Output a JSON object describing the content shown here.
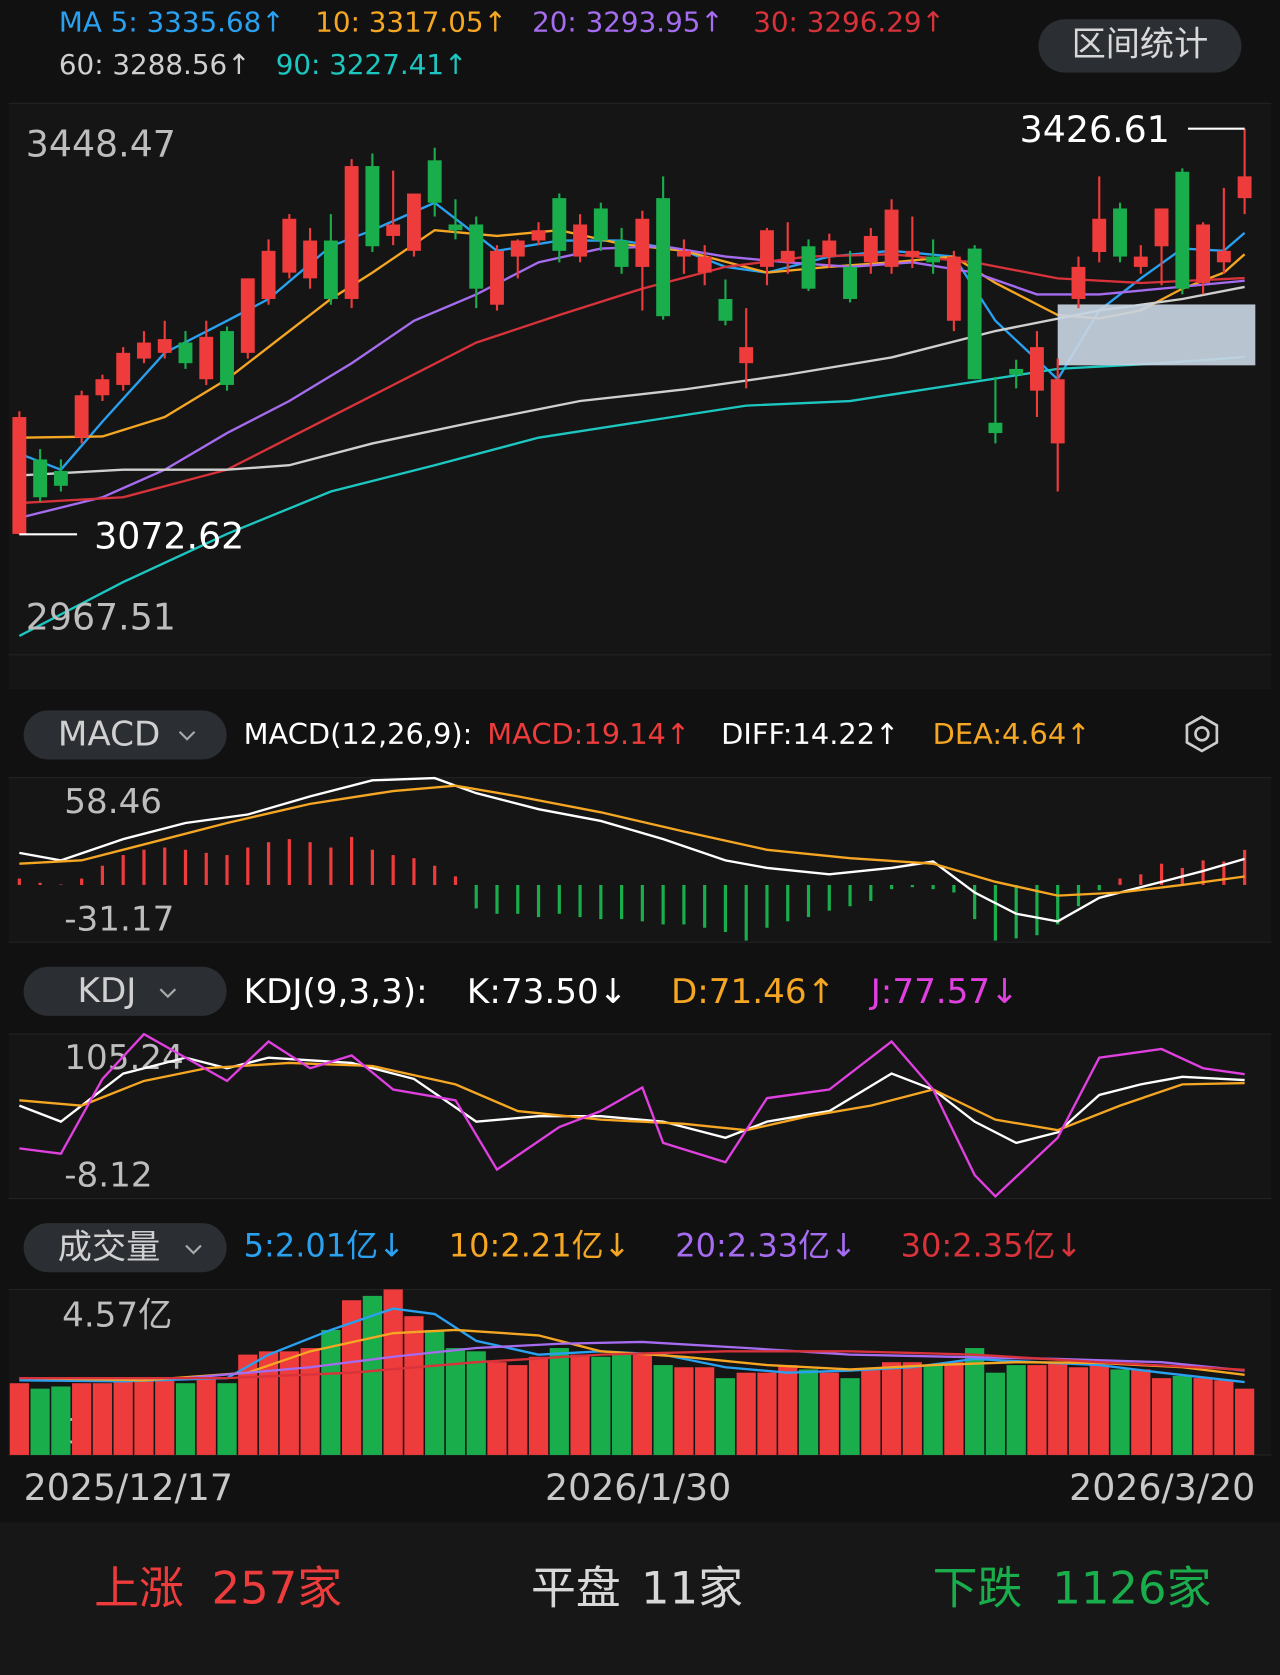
{
  "header": {
    "button": "区间统计"
  },
  "chart_data": [
    {
      "type": "candlestick",
      "up_color": "#ee3b3b",
      "down_color": "#19ad4c",
      "ylim": [
        2967.51,
        3448.47
      ],
      "yticks": [
        3448.47,
        2967.51
      ],
      "grid": true,
      "open": [
        3073,
        3138,
        3128,
        3157,
        3194,
        3203,
        3226,
        3231,
        3240,
        3208,
        3250,
        3231,
        3278,
        3301,
        3296,
        3329,
        3278,
        3394,
        3333,
        3320,
        3399,
        3343,
        3343,
        3273,
        3315,
        3329,
        3366,
        3315,
        3357,
        3329,
        3306,
        3366,
        3315,
        3301,
        3278,
        3222,
        3306,
        3310,
        3324,
        3315,
        3306,
        3310,
        3306,
        3315,
        3315,
        3259,
        3322,
        3170,
        3217,
        3198,
        3152,
        3278,
        3319,
        3357,
        3306,
        3324,
        3389,
        3292,
        3310,
        3366
      ],
      "high": [
        3180,
        3147,
        3138,
        3198,
        3212,
        3236,
        3250,
        3259,
        3250,
        3259,
        3254,
        3296,
        3330,
        3352,
        3340,
        3352,
        3400,
        3405,
        3390,
        3370,
        3410,
        3365,
        3350,
        3325,
        3330,
        3345,
        3370,
        3352,
        3362,
        3340,
        3355,
        3385,
        3330,
        3325,
        3295,
        3270,
        3340,
        3345,
        3330,
        3335,
        3320,
        3340,
        3365,
        3350,
        3330,
        3320,
        3325,
        3210,
        3225,
        3250,
        3226,
        3315,
        3385,
        3362,
        3325,
        3357,
        3392,
        3345,
        3375,
        3426.61
      ],
      "low": [
        3072.62,
        3101,
        3110,
        3152,
        3189,
        3198,
        3222,
        3226,
        3217,
        3203,
        3198,
        3226,
        3273,
        3296,
        3287,
        3273,
        3270,
        3319,
        3325,
        3315,
        3350,
        3330,
        3270,
        3268,
        3296,
        3325,
        3310,
        3310,
        3320,
        3300,
        3268,
        3260,
        3300,
        3290,
        3255,
        3200,
        3290,
        3300,
        3285,
        3305,
        3275,
        3300,
        3300,
        3305,
        3300,
        3250,
        3208,
        3152,
        3200,
        3175,
        3110,
        3270,
        3310,
        3310,
        3300,
        3290,
        3282,
        3282,
        3300,
        3352
      ],
      "close": [
        3175,
        3105,
        3115,
        3194,
        3208,
        3231,
        3240,
        3243,
        3222,
        3245,
        3203,
        3296,
        3320,
        3348,
        3329,
        3278,
        3394,
        3324,
        3343,
        3370,
        3362,
        3338,
        3287,
        3320,
        3329,
        3338,
        3320,
        3343,
        3329,
        3306,
        3348,
        3263,
        3320,
        3315,
        3259,
        3236,
        3338,
        3320,
        3287,
        3329,
        3278,
        3333,
        3356,
        3320,
        3310,
        3315,
        3208,
        3161,
        3212,
        3236,
        3208,
        3306,
        3348,
        3315,
        3315,
        3357,
        3287,
        3343,
        3320,
        3385
      ],
      "series": [
        {
          "name": "MA 5: 3335.68↑",
          "color": "#2aa1f0",
          "x": [
            0,
            2,
            4,
            7,
            10,
            12,
            15,
            17,
            20,
            23,
            26,
            29,
            32,
            34,
            36,
            39,
            42,
            45,
            47,
            50,
            52,
            54,
            56,
            58,
            59
          ],
          "values": [
            3143,
            3129,
            3171,
            3231,
            3259,
            3278,
            3324,
            3338,
            3362,
            3320,
            3329,
            3329,
            3320,
            3306,
            3301,
            3315,
            3320,
            3315,
            3259,
            3208,
            3268,
            3296,
            3322,
            3320,
            3335.68
          ]
        },
        {
          "name": "10: 3317.05↑",
          "color": "#f5a623",
          "x": [
            0,
            4,
            7,
            10,
            12,
            15,
            17,
            20,
            23,
            26,
            29,
            32,
            36,
            39,
            42,
            45,
            47,
            50,
            52,
            54,
            56,
            58,
            59
          ],
          "values": [
            3157,
            3158,
            3175,
            3208,
            3236,
            3278,
            3301,
            3338,
            3333,
            3338,
            3326,
            3320,
            3301,
            3306,
            3310,
            3315,
            3292,
            3264,
            3261,
            3268,
            3287,
            3301,
            3317.05
          ]
        },
        {
          "name": "20: 3293.95↑",
          "color": "#a56cf0",
          "x": [
            0,
            4,
            7,
            10,
            13,
            16,
            19,
            22,
            25,
            28,
            31,
            34,
            37,
            40,
            43,
            46,
            49,
            52,
            55,
            59
          ],
          "values": [
            3087,
            3105,
            3129,
            3161,
            3189,
            3222,
            3259,
            3282,
            3310,
            3322,
            3324,
            3315,
            3310,
            3306,
            3310,
            3301,
            3282,
            3282,
            3287,
            3293.95
          ]
        },
        {
          "name": "30: 3296.29↑",
          "color": "#d8323a",
          "x": [
            0,
            5,
            10,
            14,
            18,
            22,
            26,
            30,
            34,
            38,
            42,
            46,
            50,
            54,
            59
          ],
          "values": [
            3100,
            3105,
            3129,
            3166,
            3203,
            3240,
            3264,
            3287,
            3306,
            3315,
            3317,
            3310,
            3296,
            3292,
            3296.29
          ]
        },
        {
          "name": "60: 3288.56↑",
          "color": "#cfcfcf",
          "x": [
            0,
            5,
            10,
            13,
            17,
            22,
            27,
            32,
            37,
            42,
            47,
            52,
            56,
            59
          ],
          "values": [
            3124,
            3129,
            3129,
            3133,
            3152,
            3171,
            3189,
            3199,
            3212,
            3227,
            3250,
            3268,
            3278,
            3288.56
          ]
        },
        {
          "name": "90: 3227.41↑",
          "color": "#1cc7c1",
          "x": [
            0,
            5,
            10,
            15,
            20,
            25,
            30,
            35,
            40,
            45,
            50,
            55,
            59
          ],
          "values": [
            2984,
            3031,
            3073,
            3110,
            3133,
            3157,
            3171,
            3185,
            3189,
            3203,
            3217,
            3222,
            3227.41
          ]
        }
      ]
    },
    {
      "type": "macd",
      "button": "MACD",
      "title": "MACD(12,26,9):",
      "ylim": [
        -31.17,
        58.46
      ],
      "yticks": [
        58.46,
        -31.17
      ],
      "grid": true,
      "up_color": "#ee3b3b",
      "down_color": "#19ad4c",
      "series": [
        {
          "name": "MACD:19.14↑",
          "color": "#ee3b3b",
          "type": "bar",
          "values": [
            3.5,
            1.2,
            0.3,
            3.5,
            10.5,
            16.3,
            19.2,
            20.4,
            19.2,
            17.5,
            16.3,
            20.4,
            23.3,
            25.0,
            23.3,
            20.4,
            26.2,
            19.2,
            16.3,
            14.6,
            10.5,
            4.7,
            -12.8,
            -15.7,
            -15.7,
            -17.5,
            -15.7,
            -17.5,
            -18.6,
            -18.6,
            -19.8,
            -21.5,
            -21.5,
            -23.3,
            -25.6,
            -30.3,
            -23.3,
            -19.8,
            -17.5,
            -14.0,
            -11.6,
            -8.7,
            -2.3,
            -1.2,
            -2.3,
            -4.1,
            -18.6,
            -30.3,
            -29.1,
            -27.4,
            -21.5,
            -11.6,
            -2.9,
            3.5,
            5.8,
            11.6,
            9.3,
            13.4,
            12.8,
            19.14
          ]
        },
        {
          "name": "DIFF:14.22↑",
          "color": "#ffffff",
          "x": [
            0,
            2,
            5,
            8,
            11,
            14,
            17,
            20,
            22,
            25,
            28,
            31,
            34,
            36,
            39,
            42,
            44,
            46,
            48,
            50,
            52,
            55,
            57,
            59
          ],
          "values": [
            17.5,
            13.4,
            25.0,
            33.8,
            38.4,
            48.3,
            57.0,
            58.2,
            50.0,
            41.3,
            34.9,
            25.0,
            13.4,
            9.3,
            5.8,
            9.3,
            12.8,
            -4.1,
            -15.7,
            -19.8,
            -7.0,
            1.7,
            7.6,
            14.22
          ]
        },
        {
          "name": "DEA:4.64↑",
          "color": "#f5a623",
          "x": [
            0,
            3,
            6,
            10,
            14,
            18,
            21,
            24,
            28,
            32,
            36,
            40,
            44,
            47,
            50,
            53,
            56,
            59
          ],
          "values": [
            11.6,
            13.4,
            22.1,
            33.8,
            44.2,
            51.2,
            54.1,
            48.3,
            39.6,
            29.1,
            19.2,
            14.6,
            11.6,
            1.7,
            -5.8,
            -4.1,
            0,
            4.64
          ]
        }
      ]
    },
    {
      "type": "line",
      "button": "KDJ",
      "title": "KDJ(9,3,3):",
      "ylim": [
        -8.12,
        105.24
      ],
      "yticks": [
        105.24,
        -8.12
      ],
      "grid": true,
      "series": [
        {
          "name": "K:73.50↓",
          "color": "#ffffff",
          "x": [
            0,
            2,
            5,
            8,
            10,
            12,
            16,
            19,
            22,
            25,
            28,
            31,
            34,
            36,
            39,
            42,
            44,
            46,
            48,
            50,
            52,
            54,
            56,
            59
          ],
          "values": [
            55.9,
            44.9,
            78.0,
            89.0,
            81.7,
            89.0,
            85.4,
            74.3,
            44.9,
            48.6,
            48.6,
            44.9,
            33.8,
            44.9,
            52.2,
            78.0,
            67.0,
            44.9,
            30.2,
            37.5,
            63.3,
            70.6,
            75.8,
            73.5
          ]
        },
        {
          "name": "D:71.46↑",
          "color": "#f5a623",
          "x": [
            0,
            3,
            6,
            9,
            13,
            17,
            21,
            24,
            28,
            32,
            35,
            38,
            41,
            44,
            47,
            50,
            53,
            56,
            59
          ],
          "values": [
            59.6,
            55.9,
            72.9,
            81.7,
            85.4,
            83.2,
            70.6,
            52.2,
            46.3,
            43.4,
            39.0,
            48.6,
            55.9,
            67.0,
            46.3,
            39.0,
            55.9,
            70.6,
            71.46
          ]
        },
        {
          "name": "J:77.57↓",
          "color": "#e040e0",
          "x": [
            0,
            2,
            4,
            6,
            8,
            10,
            12,
            14,
            16,
            18,
            21,
            23,
            26,
            28,
            30,
            31,
            34,
            36,
            39,
            42,
            44,
            46,
            47,
            50,
            52,
            55,
            57,
            59
          ],
          "values": [
            26.5,
            22.8,
            74.3,
            105.2,
            89.0,
            72.9,
            100.1,
            81.7,
            90.5,
            67.0,
            59.6,
            11.8,
            41.2,
            52.2,
            68.4,
            30.2,
            16.9,
            61.1,
            67.0,
            100.1,
            67.0,
            8.1,
            -6.6,
            33.8,
            89.0,
            94.9,
            81.7,
            77.57
          ]
        }
      ]
    },
    {
      "type": "volume",
      "button": "成交量",
      "ylim": [
        0,
        4.57
      ],
      "yticks": [
        {
          "value": 4.57,
          "label": "4.57亿"
        },
        0
      ],
      "grid": true,
      "categories": [
        "2025/12/17",
        null,
        null,
        null,
        null,
        null,
        null,
        null,
        null,
        null,
        null,
        null,
        null,
        null,
        null,
        null,
        null,
        null,
        null,
        null,
        null,
        null,
        null,
        null,
        null,
        null,
        null,
        null,
        null,
        null,
        "2026/1/30",
        null,
        null,
        null,
        null,
        null,
        null,
        null,
        null,
        null,
        null,
        null,
        null,
        null,
        null,
        null,
        null,
        null,
        null,
        null,
        null,
        null,
        null,
        null,
        null,
        null,
        null,
        null,
        null,
        "2026/3/20"
      ],
      "values": [
        1.98,
        1.83,
        1.89,
        1.98,
        1.98,
        2.03,
        2.12,
        2.12,
        1.98,
        2.12,
        1.98,
        2.77,
        2.86,
        2.86,
        2.95,
        3.45,
        4.27,
        4.39,
        4.57,
        3.83,
        3.45,
        2.95,
        2.86,
        2.56,
        2.48,
        2.71,
        2.95,
        2.77,
        2.71,
        2.77,
        2.77,
        2.48,
        2.42,
        2.42,
        2.12,
        2.27,
        2.27,
        2.48,
        2.36,
        2.27,
        2.12,
        2.36,
        2.56,
        2.56,
        2.48,
        2.56,
        2.95,
        2.27,
        2.48,
        2.48,
        2.56,
        2.42,
        2.48,
        2.36,
        2.36,
        2.12,
        2.18,
        2.12,
        2.06,
        1.83
      ],
      "series": [
        {
          "name": "5:2.01亿↓",
          "color": "#2aa1f0",
          "x": [
            0,
            5,
            10,
            12,
            15,
            18,
            20,
            22,
            25,
            28,
            31,
            34,
            37,
            40,
            43,
            46,
            49,
            52,
            55,
            59
          ],
          "values": [
            2.06,
            2.03,
            2.12,
            2.77,
            3.45,
            4.04,
            3.89,
            3.15,
            2.77,
            2.86,
            2.77,
            2.42,
            2.27,
            2.33,
            2.42,
            2.65,
            2.56,
            2.48,
            2.27,
            2.01
          ]
        },
        {
          "name": "10:2.21亿↓",
          "color": "#f5a623",
          "x": [
            0,
            6,
            11,
            14,
            18,
            21,
            25,
            28,
            32,
            36,
            40,
            44,
            48,
            52,
            56,
            59
          ],
          "values": [
            2.12,
            2.06,
            2.27,
            2.86,
            3.36,
            3.45,
            3.3,
            2.86,
            2.71,
            2.48,
            2.36,
            2.48,
            2.56,
            2.54,
            2.42,
            2.21
          ]
        },
        {
          "name": "20:2.33亿↓",
          "color": "#a56cf0",
          "x": [
            0,
            8,
            14,
            18,
            22,
            26,
            30,
            35,
            40,
            45,
            50,
            55,
            59
          ],
          "values": [
            2.12,
            2.12,
            2.42,
            2.71,
            2.95,
            3.07,
            3.12,
            2.95,
            2.77,
            2.71,
            2.65,
            2.56,
            2.33
          ]
        },
        {
          "name": "30:2.35亿↓",
          "color": "#d8323a",
          "x": [
            0,
            10,
            16,
            22,
            28,
            34,
            40,
            46,
            52,
            59
          ],
          "values": [
            2.12,
            2.12,
            2.27,
            2.56,
            2.77,
            2.86,
            2.86,
            2.77,
            2.56,
            2.35
          ]
        }
      ]
    }
  ],
  "footer": {
    "up": {
      "label": "上涨",
      "count": "257家"
    },
    "flat": {
      "label": "平盘",
      "count": "11家"
    },
    "down": {
      "label": "下跌",
      "count": "1126家"
    }
  }
}
